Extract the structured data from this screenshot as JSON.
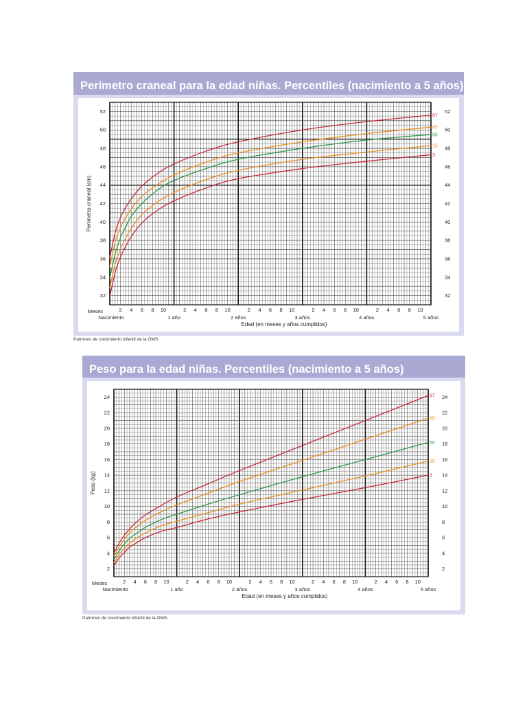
{
  "chart_data": [
    {
      "type": "line",
      "title": "Perímetro craneal para la edad niñas. Percentiles (nacimiento a 5 años)",
      "ylabel": "Perímetro craneal (cm)",
      "xlabel": "Edad (en meses y años cumplidos)",
      "caption": "Patrones de crecimiento infantil de la OMS.",
      "x_unit": "months",
      "xlim": [
        0,
        60
      ],
      "ylim": [
        31,
        53
      ],
      "y_ticks": [
        32,
        34,
        36,
        38,
        40,
        42,
        44,
        46,
        48,
        50,
        52
      ],
      "x_tick_labels": [
        {
          "x": 2,
          "label": "2"
        },
        {
          "x": 4,
          "label": "4"
        },
        {
          "x": 6,
          "label": "6"
        },
        {
          "x": 8,
          "label": "8"
        },
        {
          "x": 10,
          "label": "10"
        },
        {
          "x": 14,
          "label": "2"
        },
        {
          "x": 16,
          "label": "4"
        },
        {
          "x": 18,
          "label": "6"
        },
        {
          "x": 20,
          "label": "8"
        },
        {
          "x": 22,
          "label": "10"
        },
        {
          "x": 26,
          "label": "2"
        },
        {
          "x": 28,
          "label": "4"
        },
        {
          "x": 30,
          "label": "6"
        },
        {
          "x": 32,
          "label": "8"
        },
        {
          "x": 34,
          "label": "10"
        },
        {
          "x": 38,
          "label": "2"
        },
        {
          "x": 40,
          "label": "4"
        },
        {
          "x": 42,
          "label": "6"
        },
        {
          "x": 44,
          "label": "8"
        },
        {
          "x": 46,
          "label": "10"
        },
        {
          "x": 50,
          "label": "2"
        },
        {
          "x": 52,
          "label": "4"
        },
        {
          "x": 54,
          "label": "6"
        },
        {
          "x": 56,
          "label": "8"
        },
        {
          "x": 58,
          "label": "10"
        }
      ],
      "x_year_labels": [
        {
          "x": 0,
          "label": "Nacimiento"
        },
        {
          "x": 12,
          "label": "1 año"
        },
        {
          "x": 24,
          "label": "2 años"
        },
        {
          "x": 36,
          "label": "3 años"
        },
        {
          "x": 48,
          "label": "4 años"
        },
        {
          "x": 60,
          "label": "5 años"
        }
      ],
      "x_row_label": "Meses",
      "x": [
        0,
        1,
        2,
        3,
        4,
        6,
        9,
        12,
        18,
        24,
        36,
        48,
        60
      ],
      "series": [
        {
          "name": "97",
          "color": "#c8283c",
          "values": [
            36.1,
            38.8,
            40.5,
            41.6,
            42.5,
            43.9,
            45.3,
            46.3,
            47.7,
            48.7,
            50.0,
            50.9,
            51.6
          ]
        },
        {
          "name": "85",
          "color": "#e8901e",
          "values": [
            35.1,
            37.8,
            39.4,
            40.5,
            41.4,
            42.8,
            44.1,
            45.1,
            46.5,
            47.5,
            48.7,
            49.6,
            50.3
          ]
        },
        {
          "name": "50",
          "color": "#2a9a4c",
          "values": [
            33.9,
            36.5,
            38.3,
            39.5,
            40.6,
            42.0,
            43.5,
            44.5,
            45.8,
            46.8,
            48.0,
            48.9,
            49.5
          ]
        },
        {
          "name": "15",
          "color": "#e8901e",
          "values": [
            32.8,
            35.4,
            37.1,
            38.3,
            39.3,
            40.8,
            42.2,
            43.2,
            44.6,
            45.6,
            46.8,
            47.6,
            48.3
          ]
        },
        {
          "name": "3",
          "color": "#c8283c",
          "values": [
            31.9,
            34.5,
            36.2,
            37.4,
            38.4,
            39.9,
            41.3,
            42.3,
            43.7,
            44.7,
            45.8,
            46.6,
            47.3
          ]
        }
      ]
    },
    {
      "type": "line",
      "title": "Peso para la edad niñas. Percentiles (nacimiento a 5 años)",
      "ylabel": "Peso (kg)",
      "xlabel": "Edad (en meses y años cumplidos)",
      "caption": "Patrones de crecimiento infantil de la OMS.",
      "x_unit": "months",
      "xlim": [
        0,
        60
      ],
      "ylim": [
        1,
        25
      ],
      "y_ticks": [
        2,
        4,
        6,
        8,
        10,
        12,
        14,
        16,
        18,
        20,
        22,
        24
      ],
      "x_tick_labels": [
        {
          "x": 2,
          "label": "2"
        },
        {
          "x": 4,
          "label": "4"
        },
        {
          "x": 6,
          "label": "6"
        },
        {
          "x": 8,
          "label": "8"
        },
        {
          "x": 10,
          "label": "10"
        },
        {
          "x": 14,
          "label": "2"
        },
        {
          "x": 16,
          "label": "4"
        },
        {
          "x": 18,
          "label": "6"
        },
        {
          "x": 20,
          "label": "8"
        },
        {
          "x": 22,
          "label": "10"
        },
        {
          "x": 26,
          "label": "2"
        },
        {
          "x": 28,
          "label": "4"
        },
        {
          "x": 30,
          "label": "6"
        },
        {
          "x": 32,
          "label": "8"
        },
        {
          "x": 34,
          "label": "10"
        },
        {
          "x": 38,
          "label": "2"
        },
        {
          "x": 40,
          "label": "4"
        },
        {
          "x": 42,
          "label": "6"
        },
        {
          "x": 44,
          "label": "8"
        },
        {
          "x": 46,
          "label": "10"
        },
        {
          "x": 50,
          "label": "2"
        },
        {
          "x": 52,
          "label": "4"
        },
        {
          "x": 54,
          "label": "6"
        },
        {
          "x": 56,
          "label": "8"
        },
        {
          "x": 58,
          "label": "10"
        }
      ],
      "x_year_labels": [
        {
          "x": 0,
          "label": "Nacimiento"
        },
        {
          "x": 12,
          "label": "1 año"
        },
        {
          "x": 24,
          "label": "2 años"
        },
        {
          "x": 36,
          "label": "3 años"
        },
        {
          "x": 48,
          "label": "4 años"
        },
        {
          "x": 60,
          "label": "5 años"
        }
      ],
      "x_row_label": "Meses",
      "x": [
        0,
        1,
        2,
        3,
        4,
        6,
        9,
        12,
        18,
        24,
        36,
        48,
        60
      ],
      "series": [
        {
          "name": "97",
          "color": "#c8283c",
          "values": [
            4.0,
            5.3,
            6.3,
            7.1,
            7.8,
            8.9,
            10.1,
            11.2,
            12.9,
            14.6,
            17.8,
            21.0,
            24.2
          ]
        },
        {
          "name": "85",
          "color": "#e8901e",
          "values": [
            3.6,
            4.8,
            5.8,
            6.6,
            7.2,
            8.2,
            9.3,
            10.2,
            11.7,
            13.2,
            15.9,
            18.6,
            21.3
          ]
        },
        {
          "name": "50",
          "color": "#2a9a4c",
          "values": [
            3.2,
            4.3,
            5.2,
            5.9,
            6.4,
            7.3,
            8.3,
            9.0,
            10.3,
            11.5,
            13.8,
            16.0,
            18.2
          ]
        },
        {
          "name": "15",
          "color": "#e8901e",
          "values": [
            2.8,
            3.8,
            4.6,
            5.3,
            5.8,
            6.6,
            7.5,
            8.1,
            9.2,
            10.3,
            12.1,
            13.9,
            15.8
          ]
        },
        {
          "name": "3",
          "color": "#c8283c",
          "values": [
            2.4,
            3.4,
            4.1,
            4.8,
            5.2,
            6.0,
            6.8,
            7.3,
            8.4,
            9.3,
            10.9,
            12.4,
            14.0
          ]
        }
      ]
    }
  ]
}
